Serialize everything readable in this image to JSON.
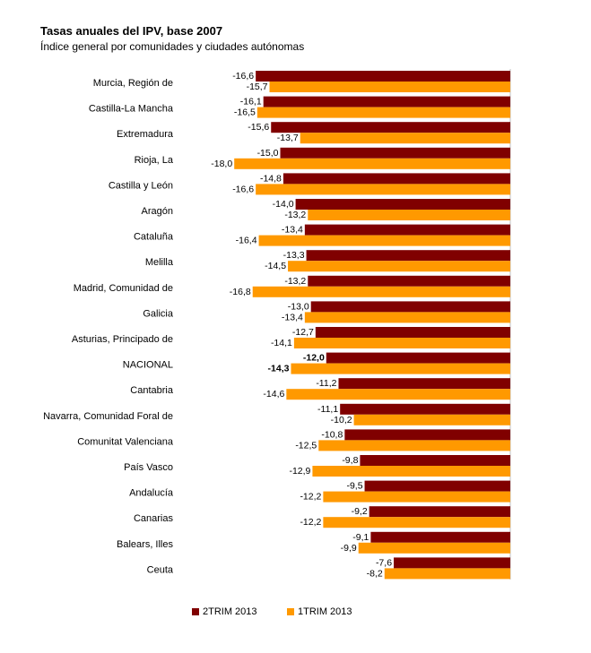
{
  "title": "Tasas anuales del IPV, base 2007",
  "subtitle": "Índice general por comunidades y ciudades autónomas",
  "colors": {
    "2TRIM 2013": "#800000",
    "1TRIM 2013": "#FF9900"
  },
  "chart_data": {
    "type": "bar",
    "orientation": "horizontal",
    "title": "Tasas anuales del IPV, base 2007",
    "subtitle": "Índice general por comunidades y ciudades autónomas",
    "categories": [
      "Murcia, Región de",
      "Castilla-La Mancha",
      "Extremadura",
      "Rioja, La",
      "Castilla y León",
      "Aragón",
      "Cataluña",
      "Melilla",
      "Madrid, Comunidad de",
      "Galicia",
      "Asturias, Principado de",
      "NACIONAL",
      "Cantabria",
      "Navarra, Comunidad Foral de",
      "Comunitat Valenciana",
      "País Vasco",
      "Andalucía",
      "Canarias",
      "Balears, Illes",
      "Ceuta"
    ],
    "series": [
      {
        "name": "2TRIM 2013",
        "values": [
          -16.6,
          -16.1,
          -15.6,
          -15.0,
          -14.8,
          -14.0,
          -13.4,
          -13.3,
          -13.2,
          -13.0,
          -12.7,
          -12.0,
          -11.2,
          -11.1,
          -10.8,
          -9.8,
          -9.5,
          -9.2,
          -9.1,
          -7.6
        ],
        "labels": [
          "-16,6",
          "-16,1",
          "-15,6",
          "-15,0",
          "-14,8",
          "-14,0",
          "-13,4",
          "-13,3",
          "-13,2",
          "-13,0",
          "-12,7",
          "-12,0",
          "-11,2",
          "-11,1",
          "-10,8",
          "-9,8",
          "-9,5",
          "-9,2",
          "-9,1",
          "-7,6"
        ]
      },
      {
        "name": "1TRIM 2013",
        "values": [
          -15.7,
          -16.5,
          -13.7,
          -18.0,
          -16.6,
          -13.2,
          -16.4,
          -14.5,
          -16.8,
          -13.4,
          -14.1,
          -14.3,
          -14.6,
          -10.2,
          -12.5,
          -12.9,
          -12.2,
          -12.2,
          -9.9,
          -8.2
        ],
        "labels": [
          "-15,7",
          "-16,5",
          "-13,7",
          "-18,0",
          "-16,6",
          "-13,2",
          "-16,4",
          "-14,5",
          "-16,8",
          "-13,4",
          "-14,1",
          "-14,3",
          "-14,6",
          "-10,2",
          "-12,5",
          "-12,9",
          "-12,2",
          "-12,2",
          "-9,9",
          "-8,2"
        ]
      }
    ],
    "highlight_category": "NACIONAL",
    "xlim": [
      -18.0,
      0
    ],
    "legend_position": "bottom",
    "grid": false
  }
}
